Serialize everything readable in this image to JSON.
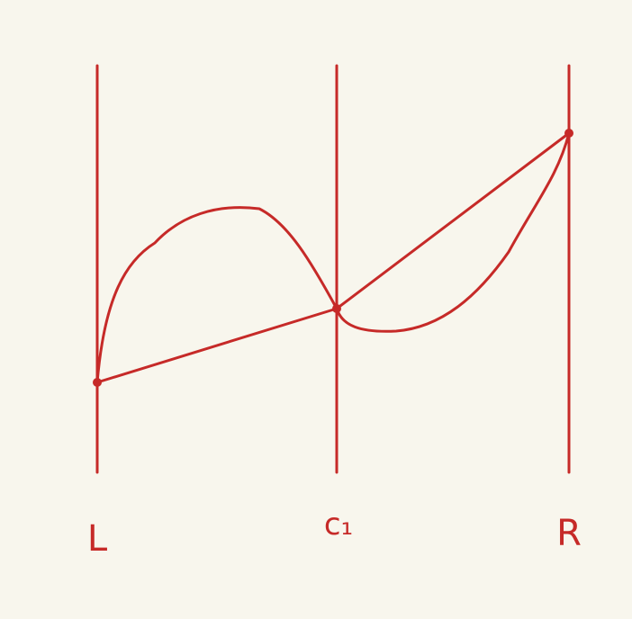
{
  "diagram": {
    "ink_color": "#c62a28",
    "background_color": "#f8f6ed",
    "labels": {
      "left": "L",
      "middle": "c₁",
      "right": "R"
    }
  }
}
